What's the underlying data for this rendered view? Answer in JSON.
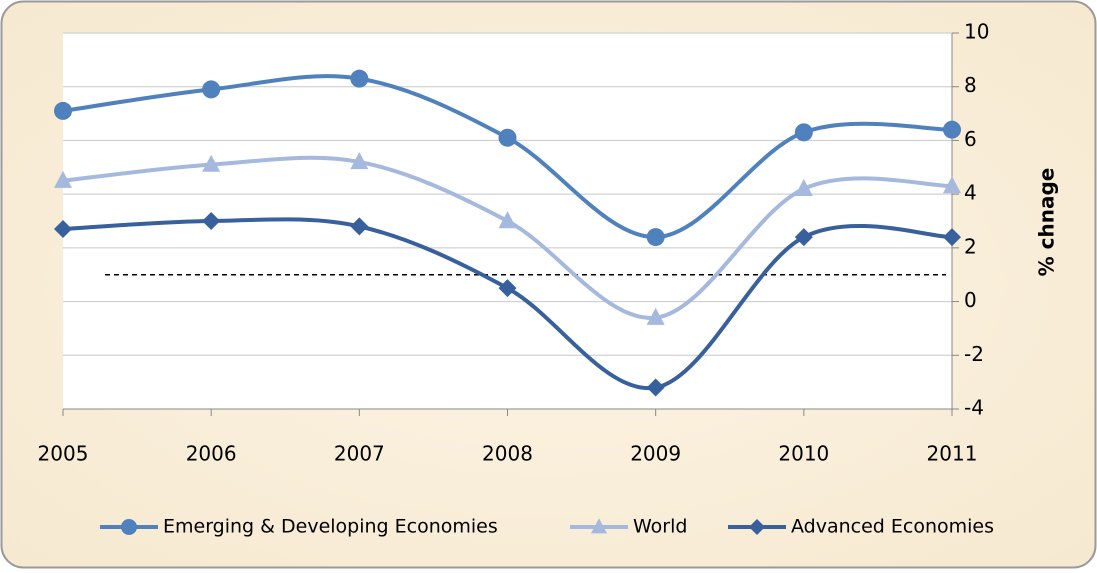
{
  "chart_data": {
    "type": "line",
    "smooth": true,
    "categories": [
      "2005",
      "2006",
      "2007",
      "2008",
      "2009",
      "2010",
      "2011"
    ],
    "y_axis_label": "% chnage",
    "y_axis_side": "right",
    "ylim": [
      -4,
      10
    ],
    "yticks": [
      -4,
      -2,
      0,
      2,
      4,
      6,
      8,
      10
    ],
    "grid": true,
    "reference_line": 1,
    "legend": "bottom",
    "series": [
      {
        "name": "Emerging & Developing Economies",
        "color": "#4f81bd",
        "marker": "circle",
        "values": [
          7.1,
          7.9,
          8.3,
          6.1,
          2.4,
          6.3,
          6.4
        ]
      },
      {
        "name": "World",
        "color": "#a5b8dd",
        "marker": "triangle",
        "values": [
          4.5,
          5.1,
          5.2,
          3.0,
          -0.6,
          4.2,
          4.3
        ]
      },
      {
        "name": "Advanced Economies",
        "color": "#37609d",
        "marker": "diamond",
        "values": [
          2.7,
          3.0,
          2.8,
          0.5,
          -3.2,
          2.4,
          2.4
        ]
      }
    ]
  }
}
